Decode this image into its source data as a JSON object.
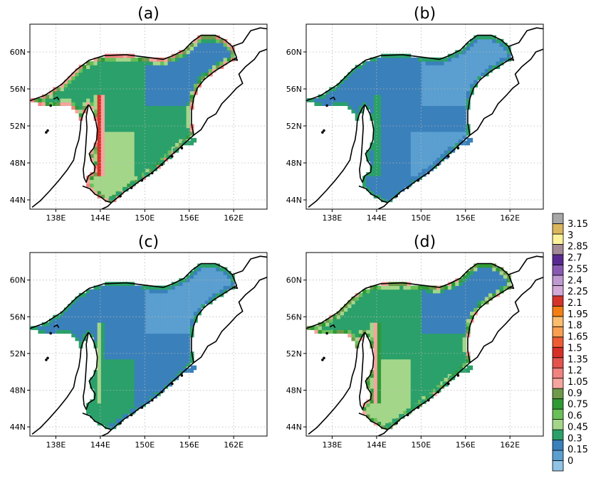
{
  "chart_data": {
    "type": "heatmap",
    "panels": [
      {
        "title": "(a)",
        "peak_value": 2.0,
        "ridge_value": 1.35,
        "offshore_value": 0.3,
        "south_value": 0.45
      },
      {
        "title": "(b)",
        "peak_value": 0.55,
        "ridge_value": 0.45,
        "offshore_value": 0.15,
        "south_value": 0.15
      },
      {
        "title": "(c)",
        "peak_value": 0.6,
        "ridge_value": 0.45,
        "offshore_value": 0.15,
        "south_value": 0.3
      },
      {
        "title": "(d)",
        "peak_value": 1.4,
        "ridge_value": 1.1,
        "offshore_value": 0.3,
        "south_value": 0.45
      }
    ],
    "x_axis": {
      "ticks": [
        138,
        144,
        150,
        156,
        162
      ],
      "tick_labels": [
        "138E",
        "144E",
        "150E",
        "156E",
        "162E"
      ],
      "range": [
        134.5,
        166.5
      ]
    },
    "y_axis": {
      "ticks": [
        44,
        48,
        52,
        56,
        60
      ],
      "tick_labels": [
        "44N",
        "48N",
        "52N",
        "56N",
        "60N"
      ],
      "range": [
        43,
        63
      ]
    },
    "grid": true,
    "colorbar": {
      "levels": [
        0,
        0.15,
        0.3,
        0.45,
        0.6,
        0.75,
        0.9,
        1.05,
        1.2,
        1.35,
        1.5,
        1.65,
        1.8,
        1.95,
        2.1,
        2.25,
        2.4,
        2.55,
        2.7,
        2.85,
        3,
        3.15
      ],
      "labels": [
        "0",
        "0.15",
        "0.3",
        "0.45",
        "0.6",
        "0.75",
        "0.9",
        "1.05",
        "1.2",
        "1.35",
        "1.5",
        "1.65",
        "1.8",
        "1.95",
        "2.1",
        "2.25",
        "2.4",
        "2.55",
        "2.7",
        "2.85",
        "3",
        "3.15"
      ],
      "colors": [
        "#90c3e6",
        "#5a9fd0",
        "#3a80bb",
        "#2ba06a",
        "#a4d68a",
        "#69bf58",
        "#2f9a35",
        "#6e9a4a",
        "#f5a49e",
        "#f08280",
        "#e3544d",
        "#d73027",
        "#ee5c34",
        "#f99f52",
        "#fdbd6e",
        "#f47e14",
        "#d6342b",
        "#d3a9d9",
        "#bf9ad0",
        "#8a5ab3",
        "#5a2a93",
        "#a38a96",
        "#fff29a",
        "#dbb65c",
        "#a7a7a7"
      ]
    }
  }
}
